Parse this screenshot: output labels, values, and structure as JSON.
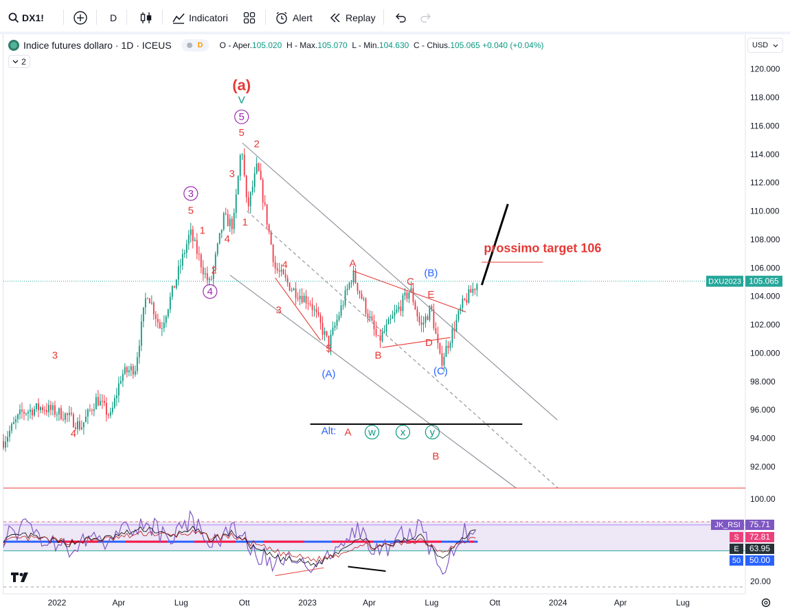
{
  "toolbar": {
    "symbol": "DX1!",
    "interval": "D",
    "indicators_label": "Indicatori",
    "alert_label": "Alert",
    "replay_label": "Replay"
  },
  "legend": {
    "title": "Indice futures dollaro · 1D · ICEUS",
    "badge_letter": "D",
    "o_label": "O - Aper.",
    "o_value": "105.020",
    "h_label": "H - Max.",
    "h_value": "105.070",
    "l_label": "L - Min.",
    "l_value": "104.630",
    "c_label": "C - Chius.",
    "c_value": "105.065",
    "change": "+0.040 (+0.04%)",
    "collapse_count": "2"
  },
  "currency": "USD",
  "colors": {
    "wave_red": "#e53935",
    "wave_purple": "#9c27b0",
    "wave_blue": "#2962ff",
    "wave_teal": "#089981",
    "channel": "#787b86",
    "price_label": "#26a69a",
    "rsi_line": "#7e57c2",
    "rsi_band": "#ede7f6"
  },
  "chart_data": [
    {
      "type": "candlestick",
      "symbol": "DX1!",
      "series_label": "DXU2023",
      "last_price": "105.065",
      "ylim": [
        90.5,
        121.0
      ],
      "xlim": [
        "2021-10-15",
        "2024-09-30"
      ],
      "x_ticks": [
        {
          "label": "2022",
          "date": "2022-01-01"
        },
        {
          "label": "Apr",
          "date": "2022-04-01"
        },
        {
          "label": "Lug",
          "date": "2022-07-01"
        },
        {
          "label": "Ott",
          "date": "2022-10-01"
        },
        {
          "label": "2023",
          "date": "2023-01-01"
        },
        {
          "label": "Apr",
          "date": "2023-04-01"
        },
        {
          "label": "Lug",
          "date": "2023-07-01"
        },
        {
          "label": "Ott",
          "date": "2023-10-01"
        },
        {
          "label": "2024",
          "date": "2024-01-01"
        },
        {
          "label": "Apr",
          "date": "2024-04-01"
        },
        {
          "label": "Lug",
          "date": "2024-07-01"
        }
      ],
      "y_ticks": [
        "92.000",
        "94.000",
        "96.000",
        "98.000",
        "100.000",
        "102.000",
        "104.000",
        "106.000",
        "108.000",
        "110.000",
        "112.000",
        "114.000",
        "116.000",
        "118.000",
        "120.000"
      ],
      "price_path": [
        {
          "date": "2021-10-15",
          "price": 93.8
        },
        {
          "date": "2021-11-10",
          "price": 95.8
        },
        {
          "date": "2021-12-10",
          "price": 96.2
        },
        {
          "date": "2022-01-15",
          "price": 95.6
        },
        {
          "date": "2022-02-05",
          "price": 94.8
        },
        {
          "date": "2022-02-28",
          "price": 96.8
        },
        {
          "date": "2022-03-20",
          "price": 95.5
        },
        {
          "date": "2022-04-05",
          "price": 98.5
        },
        {
          "date": "2022-04-25",
          "price": 99.0
        },
        {
          "date": "2022-05-12",
          "price": 104.4
        },
        {
          "date": "2022-06-01",
          "price": 101.7
        },
        {
          "date": "2022-06-20",
          "price": 104.6
        },
        {
          "date": "2022-07-14",
          "price": 108.5
        },
        {
          "date": "2022-08-05",
          "price": 105.5
        },
        {
          "date": "2022-08-12",
          "price": 104.8
        },
        {
          "date": "2022-09-01",
          "price": 109.5
        },
        {
          "date": "2022-09-15",
          "price": 109.0
        },
        {
          "date": "2022-09-27",
          "price": 114.8
        },
        {
          "date": "2022-10-05",
          "price": 110.0
        },
        {
          "date": "2022-10-20",
          "price": 113.2
        },
        {
          "date": "2022-11-15",
          "price": 106.0
        },
        {
          "date": "2022-12-10",
          "price": 104.5
        },
        {
          "date": "2023-01-05",
          "price": 103.6
        },
        {
          "date": "2023-02-01",
          "price": 100.6
        },
        {
          "date": "2023-03-08",
          "price": 105.6
        },
        {
          "date": "2023-04-14",
          "price": 100.8
        },
        {
          "date": "2023-05-31",
          "price": 104.5
        },
        {
          "date": "2023-06-15",
          "price": 101.8
        },
        {
          "date": "2023-06-30",
          "price": 103.2
        },
        {
          "date": "2023-07-14",
          "price": 99.3
        },
        {
          "date": "2023-08-15",
          "price": 103.4
        },
        {
          "date": "2023-09-06",
          "price": 105.0
        }
      ],
      "trendlines": [
        {
          "name": "channel-upper",
          "from": {
            "date": "2022-09-28",
            "price": 114.8
          },
          "to": {
            "date": "2023-12-31",
            "price": 95.3
          }
        },
        {
          "name": "channel-lower",
          "from": {
            "date": "2022-09-10",
            "price": 105.5
          },
          "to": {
            "date": "2023-11-01",
            "price": 90.5
          }
        },
        {
          "name": "channel-mid-dashed",
          "from": {
            "date": "2022-10-05",
            "price": 110.0
          },
          "to": {
            "date": "2024-01-01",
            "price": 90.5
          }
        },
        {
          "name": "alt-support",
          "from": {
            "date": "2023-01-05",
            "price": 95.0
          },
          "to": {
            "date": "2023-11-10",
            "price": 95.0
          }
        },
        {
          "name": "target-projection",
          "from": {
            "date": "2023-09-12",
            "price": 104.8
          },
          "to": {
            "date": "2023-10-20",
            "price": 110.5
          }
        },
        {
          "name": "target-line",
          "from": {
            "date": "2023-09-12",
            "price": 106.4
          },
          "to": {
            "date": "2023-12-10",
            "price": 106.4
          }
        },
        {
          "name": "triangle-a-e",
          "from": {
            "date": "2023-03-08",
            "price": 105.8
          },
          "to": {
            "date": "2023-08-20",
            "price": 102.9
          }
        },
        {
          "name": "triangle-b-d",
          "from": {
            "date": "2023-04-20",
            "price": 100.4
          },
          "to": {
            "date": "2023-07-28",
            "price": 101.1
          }
        },
        {
          "name": "wedge-top",
          "from": {
            "date": "2022-11-15",
            "price": 105.3
          },
          "to": {
            "date": "2023-01-20",
            "price": 100.9
          }
        }
      ],
      "annotations": [
        {
          "text": "(a)",
          "date": "2022-09-27",
          "price": 118.5,
          "color": "wave_red",
          "size": "big"
        },
        {
          "text": "V",
          "date": "2022-09-27",
          "price": 117.6,
          "color": "wave_teal"
        },
        {
          "text": "5",
          "date": "2022-09-27",
          "price": 116.4,
          "color": "wave_purple",
          "circle": true
        },
        {
          "text": "5",
          "date": "2022-09-27",
          "price": 115.3,
          "color": "wave_red"
        },
        {
          "text": "2",
          "date": "2022-10-19",
          "price": 114.5,
          "color": "wave_red"
        },
        {
          "text": "3",
          "date": "2022-09-13",
          "price": 112.4,
          "color": "wave_red"
        },
        {
          "text": "1",
          "date": "2022-10-02",
          "price": 109.0,
          "color": "wave_red"
        },
        {
          "text": "4",
          "date": "2022-09-06",
          "price": 107.8,
          "color": "wave_red"
        },
        {
          "text": "3",
          "date": "2022-07-15",
          "price": 111.0,
          "color": "wave_purple",
          "circle": true
        },
        {
          "text": "5",
          "date": "2022-07-15",
          "price": 109.8,
          "color": "wave_red"
        },
        {
          "text": "1",
          "date": "2022-08-01",
          "price": 108.4,
          "color": "wave_red"
        },
        {
          "text": "2",
          "date": "2022-08-18",
          "price": 105.6,
          "color": "wave_red"
        },
        {
          "text": "4",
          "date": "2022-08-12",
          "price": 104.1,
          "color": "wave_purple",
          "circle": true
        },
        {
          "text": "3",
          "date": "2021-12-29",
          "price": 99.6,
          "color": "wave_red"
        },
        {
          "text": "4",
          "date": "2022-01-25",
          "price": 94.1,
          "color": "wave_red"
        },
        {
          "text": "4",
          "date": "2022-11-29",
          "price": 106.0,
          "color": "wave_red"
        },
        {
          "text": "3",
          "date": "2022-11-20",
          "price": 102.8,
          "color": "wave_red"
        },
        {
          "text": "5",
          "date": "2023-02-01",
          "price": 100.1,
          "color": "wave_red"
        },
        {
          "text": "(A)",
          "date": "2023-02-01",
          "price": 98.3,
          "color": "wave_blue"
        },
        {
          "text": "A",
          "date": "2023-03-08",
          "price": 106.1,
          "color": "wave_red"
        },
        {
          "text": "B",
          "date": "2023-04-14",
          "price": 99.6,
          "color": "wave_red"
        },
        {
          "text": "C",
          "date": "2023-05-31",
          "price": 104.8,
          "color": "wave_red"
        },
        {
          "text": "D",
          "date": "2023-06-27",
          "price": 100.5,
          "color": "wave_red"
        },
        {
          "text": "E",
          "date": "2023-06-30",
          "price": 103.9,
          "color": "wave_red"
        },
        {
          "text": "(B)",
          "date": "2023-06-30",
          "price": 105.4,
          "color": "wave_blue"
        },
        {
          "text": "(C)",
          "date": "2023-07-14",
          "price": 98.5,
          "color": "wave_blue"
        },
        {
          "text": "prossimo target 106",
          "date": "2023-09-15",
          "price": 107.1,
          "color": "wave_red",
          "size": "label"
        },
        {
          "text": "Alt:",
          "date": "2023-02-01",
          "price": 94.3,
          "color": "wave_blue"
        },
        {
          "text": "A",
          "date": "2023-03-01",
          "price": 94.2,
          "color": "wave_red"
        },
        {
          "text": "w",
          "date": "2023-04-05",
          "price": 94.2,
          "color": "wave_teal",
          "circle": true
        },
        {
          "text": "x",
          "date": "2023-05-20",
          "price": 94.2,
          "color": "wave_teal",
          "circle": true
        },
        {
          "text": "y",
          "date": "2023-07-02",
          "price": 94.2,
          "color": "wave_teal",
          "circle": true
        },
        {
          "text": "B",
          "date": "2023-07-07",
          "price": 92.5,
          "color": "wave_red"
        }
      ]
    },
    {
      "type": "line",
      "name": "JK_RSI",
      "y_ticks": [
        "100.00",
        "20.00"
      ],
      "ylim": [
        15,
        100
      ],
      "band": [
        50,
        75.71
      ],
      "markers": [
        {
          "label": "JK_RSI",
          "value": "75.71"
        },
        {
          "label": "S",
          "value": "72.81"
        },
        {
          "label": "E",
          "value": "63.95"
        },
        {
          "label": "50",
          "value": "50.00"
        }
      ],
      "x": [
        "2021-10-15",
        "2021-11-15",
        "2021-12-15",
        "2022-01-15",
        "2022-02-15",
        "2022-03-15",
        "2022-04-15",
        "2022-05-15",
        "2022-06-15",
        "2022-07-15",
        "2022-08-15",
        "2022-09-15",
        "2022-10-15",
        "2022-11-15",
        "2022-12-15",
        "2023-01-15",
        "2023-02-15",
        "2023-03-15",
        "2023-04-15",
        "2023-05-15",
        "2023-06-15",
        "2023-07-15",
        "2023-08-15",
        "2023-09-06"
      ],
      "series": [
        {
          "name": "JK_RSI",
          "values": [
            62,
            70,
            58,
            52,
            64,
            60,
            72,
            74,
            58,
            78,
            55,
            72,
            48,
            40,
            38,
            34,
            58,
            70,
            46,
            64,
            70,
            30,
            66,
            75
          ]
        },
        {
          "name": "S",
          "values": [
            60,
            64,
            60,
            56,
            60,
            61,
            66,
            70,
            62,
            70,
            60,
            66,
            52,
            44,
            41,
            38,
            50,
            62,
            52,
            58,
            64,
            44,
            60,
            72
          ]
        },
        {
          "name": "E",
          "values": [
            58,
            61,
            60,
            58,
            59,
            60,
            63,
            66,
            63,
            66,
            62,
            63,
            56,
            49,
            45,
            42,
            47,
            55,
            53,
            56,
            60,
            50,
            57,
            64
          ]
        }
      ]
    }
  ]
}
